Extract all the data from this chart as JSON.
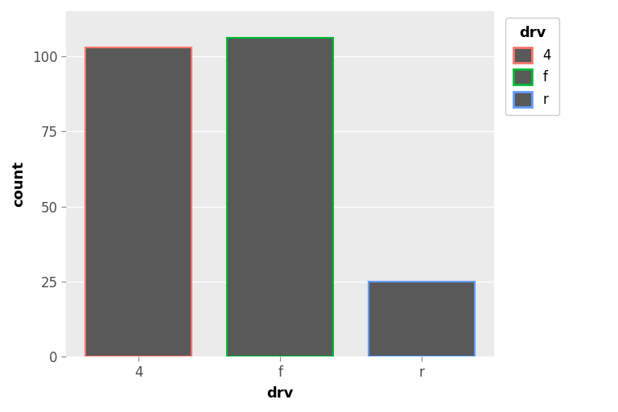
{
  "categories": [
    "4",
    "f",
    "r"
  ],
  "values": [
    103,
    106,
    25
  ],
  "bar_fill_color": "#595959",
  "border_colors": [
    "#F8766D",
    "#00BA38",
    "#619CFF"
  ],
  "bar_width": 0.75,
  "xlabel": "drv",
  "ylabel": "count",
  "legend_title": "drv",
  "legend_labels": [
    "4",
    "f",
    "r"
  ],
  "ylim": [
    0,
    115
  ],
  "yticks": [
    0,
    25,
    50,
    75,
    100
  ],
  "figure_background": "#FFFFFF",
  "panel_background": "#EBEBEB",
  "grid_color": "#FFFFFF",
  "border_linewidth": 1.5,
  "tick_label_color": "#4D4D4D",
  "axis_label_color": "#000000",
  "legend_bg": "#FFFFFF",
  "legend_border": "#CCCCCC"
}
